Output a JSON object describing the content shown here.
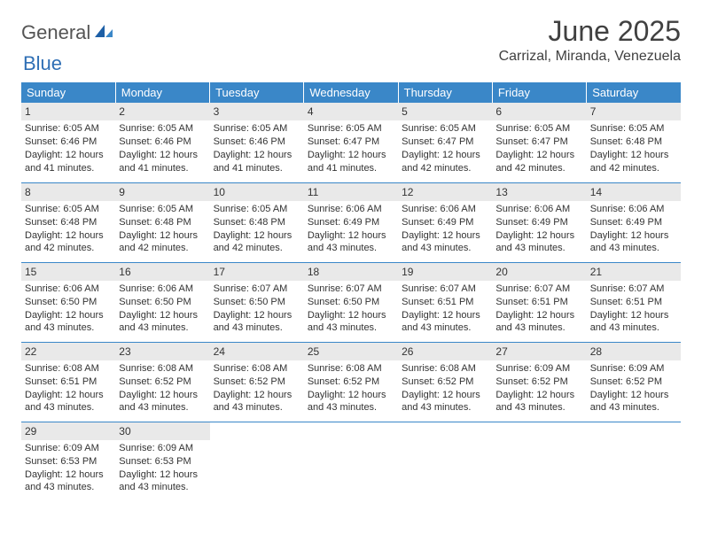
{
  "brand": {
    "word1": "General",
    "word2": "Blue"
  },
  "title": "June 2025",
  "location": "Carrizal, Miranda, Venezuela",
  "header_bg": "#3a87c8",
  "header_fg": "#ffffff",
  "grid_line": "#3a87c8",
  "daynum_bg": "#e9e9e9",
  "text_color": "#333333",
  "weekdays": [
    "Sunday",
    "Monday",
    "Tuesday",
    "Wednesday",
    "Thursday",
    "Friday",
    "Saturday"
  ],
  "weeks": [
    [
      {
        "n": "1",
        "sr": "6:05 AM",
        "ss": "6:46 PM",
        "dl": "12 hours and 41 minutes."
      },
      {
        "n": "2",
        "sr": "6:05 AM",
        "ss": "6:46 PM",
        "dl": "12 hours and 41 minutes."
      },
      {
        "n": "3",
        "sr": "6:05 AM",
        "ss": "6:46 PM",
        "dl": "12 hours and 41 minutes."
      },
      {
        "n": "4",
        "sr": "6:05 AM",
        "ss": "6:47 PM",
        "dl": "12 hours and 41 minutes."
      },
      {
        "n": "5",
        "sr": "6:05 AM",
        "ss": "6:47 PM",
        "dl": "12 hours and 42 minutes."
      },
      {
        "n": "6",
        "sr": "6:05 AM",
        "ss": "6:47 PM",
        "dl": "12 hours and 42 minutes."
      },
      {
        "n": "7",
        "sr": "6:05 AM",
        "ss": "6:48 PM",
        "dl": "12 hours and 42 minutes."
      }
    ],
    [
      {
        "n": "8",
        "sr": "6:05 AM",
        "ss": "6:48 PM",
        "dl": "12 hours and 42 minutes."
      },
      {
        "n": "9",
        "sr": "6:05 AM",
        "ss": "6:48 PM",
        "dl": "12 hours and 42 minutes."
      },
      {
        "n": "10",
        "sr": "6:05 AM",
        "ss": "6:48 PM",
        "dl": "12 hours and 42 minutes."
      },
      {
        "n": "11",
        "sr": "6:06 AM",
        "ss": "6:49 PM",
        "dl": "12 hours and 43 minutes."
      },
      {
        "n": "12",
        "sr": "6:06 AM",
        "ss": "6:49 PM",
        "dl": "12 hours and 43 minutes."
      },
      {
        "n": "13",
        "sr": "6:06 AM",
        "ss": "6:49 PM",
        "dl": "12 hours and 43 minutes."
      },
      {
        "n": "14",
        "sr": "6:06 AM",
        "ss": "6:49 PM",
        "dl": "12 hours and 43 minutes."
      }
    ],
    [
      {
        "n": "15",
        "sr": "6:06 AM",
        "ss": "6:50 PM",
        "dl": "12 hours and 43 minutes."
      },
      {
        "n": "16",
        "sr": "6:06 AM",
        "ss": "6:50 PM",
        "dl": "12 hours and 43 minutes."
      },
      {
        "n": "17",
        "sr": "6:07 AM",
        "ss": "6:50 PM",
        "dl": "12 hours and 43 minutes."
      },
      {
        "n": "18",
        "sr": "6:07 AM",
        "ss": "6:50 PM",
        "dl": "12 hours and 43 minutes."
      },
      {
        "n": "19",
        "sr": "6:07 AM",
        "ss": "6:51 PM",
        "dl": "12 hours and 43 minutes."
      },
      {
        "n": "20",
        "sr": "6:07 AM",
        "ss": "6:51 PM",
        "dl": "12 hours and 43 minutes."
      },
      {
        "n": "21",
        "sr": "6:07 AM",
        "ss": "6:51 PM",
        "dl": "12 hours and 43 minutes."
      }
    ],
    [
      {
        "n": "22",
        "sr": "6:08 AM",
        "ss": "6:51 PM",
        "dl": "12 hours and 43 minutes."
      },
      {
        "n": "23",
        "sr": "6:08 AM",
        "ss": "6:52 PM",
        "dl": "12 hours and 43 minutes."
      },
      {
        "n": "24",
        "sr": "6:08 AM",
        "ss": "6:52 PM",
        "dl": "12 hours and 43 minutes."
      },
      {
        "n": "25",
        "sr": "6:08 AM",
        "ss": "6:52 PM",
        "dl": "12 hours and 43 minutes."
      },
      {
        "n": "26",
        "sr": "6:08 AM",
        "ss": "6:52 PM",
        "dl": "12 hours and 43 minutes."
      },
      {
        "n": "27",
        "sr": "6:09 AM",
        "ss": "6:52 PM",
        "dl": "12 hours and 43 minutes."
      },
      {
        "n": "28",
        "sr": "6:09 AM",
        "ss": "6:52 PM",
        "dl": "12 hours and 43 minutes."
      }
    ],
    [
      {
        "n": "29",
        "sr": "6:09 AM",
        "ss": "6:53 PM",
        "dl": "12 hours and 43 minutes."
      },
      {
        "n": "30",
        "sr": "6:09 AM",
        "ss": "6:53 PM",
        "dl": "12 hours and 43 minutes."
      },
      null,
      null,
      null,
      null,
      null
    ]
  ],
  "labels": {
    "sunrise": "Sunrise:",
    "sunset": "Sunset:",
    "daylight": "Daylight:"
  }
}
